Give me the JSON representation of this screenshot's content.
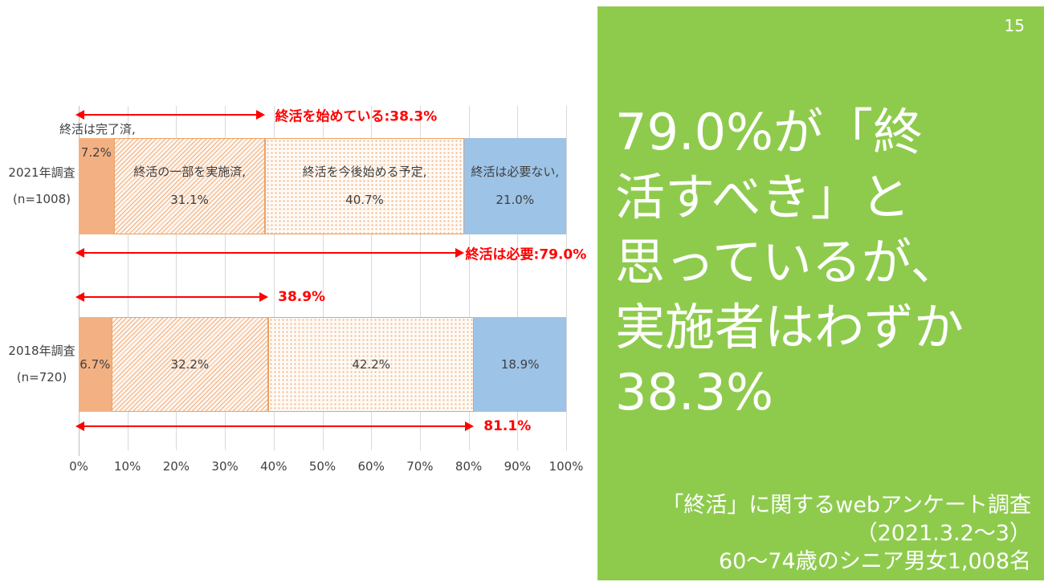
{
  "slide": {
    "page_number": "15"
  },
  "panel": {
    "bg_color": "#8ECB4D",
    "text_color": "#FFFFFF",
    "headline_lines": [
      "79.0%が「終",
      "活すべき」と",
      "思っているが、",
      "実施者はわずか",
      "38.3%"
    ],
    "subtitle_lines": [
      "「終活」に関するwebアンケート調査",
      "（2021.3.2～3）",
      "60～74歳のシニア男女1,008名"
    ]
  },
  "chart_data": {
    "type": "bar",
    "orientation": "horizontal",
    "stacked": true,
    "grid": true,
    "xlim": [
      0,
      100
    ],
    "x_ticks": [
      "0%",
      "10%",
      "20%",
      "30%",
      "40%",
      "50%",
      "60%",
      "70%",
      "80%",
      "90%",
      "100%"
    ],
    "categories": [
      "2021年調査 (n=1008)",
      "2018年調査 (n=720)"
    ],
    "series": [
      {
        "name": "終活は完了済",
        "values": [
          7.2,
          6.7
        ],
        "color": "#F3B183",
        "pattern": "solid"
      },
      {
        "name": "終活の一部を実施済",
        "values": [
          31.1,
          32.2
        ],
        "color": "#F3B183",
        "pattern": "diagonal-hatch"
      },
      {
        "name": "終活を今後始める予定",
        "values": [
          40.7,
          42.2
        ],
        "color": "#F3B183",
        "pattern": "dots"
      },
      {
        "name": "終活は必要ない",
        "values": [
          21.0,
          18.9
        ],
        "color": "#9DC3E6",
        "pattern": "solid"
      }
    ],
    "bar_labels": [
      {
        "category_lines": [
          "2021年調査",
          "(n=1008)"
        ],
        "outside_label": "終活は完了済,",
        "segment_labels": [
          [
            "7.2%"
          ],
          [
            "終活の一部を実施済,",
            "31.1%"
          ],
          [
            "終活を今後始める予定,",
            "40.7%"
          ],
          [
            "終活は必要ない,",
            "21.0%"
          ]
        ]
      },
      {
        "category_lines": [
          "2018年調査",
          "(n=720)"
        ],
        "segment_labels": [
          [
            "6.7%"
          ],
          [
            "32.2%"
          ],
          [
            "42.2%"
          ],
          [
            "18.9%"
          ]
        ]
      }
    ],
    "annotations": [
      {
        "text": "終活を始めている:38.3%",
        "value": 38.3
      },
      {
        "text": "終活は必要:79.0%",
        "value": 79.0
      },
      {
        "text": "38.9%",
        "value": 38.9
      },
      {
        "text": "81.1%",
        "value": 81.1
      }
    ],
    "colors": {
      "orange": "#F3B183",
      "blue": "#9DC3E6",
      "annotation_red": "#FF0000",
      "grid": "#D9D9D9",
      "green_panel": "#8ECB4D"
    }
  }
}
